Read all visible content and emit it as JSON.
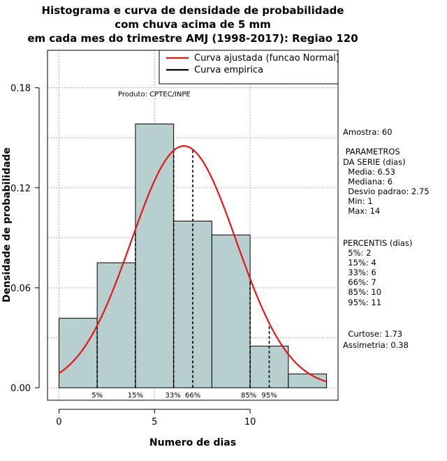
{
  "chart_data": {
    "type": "histogram",
    "title": [
      "Histograma e curva de densidade de probabilidade",
      "com chuva acima de 5 mm",
      "em cada mes do trimestre AMJ (1998-2017): Regiao 120"
    ],
    "xlabel": "Numero de dias",
    "ylabel": "Densidade de probabilidade",
    "xlim": [
      -0.6,
      14.6
    ],
    "ylim": [
      -0.0075,
      0.2025
    ],
    "x_ticks": [
      0,
      5,
      10
    ],
    "y_ticks": [
      0.0,
      0.06,
      0.12,
      0.18
    ],
    "y_tick_labels": [
      "0.00",
      "0.06",
      "0.12",
      "0.18"
    ],
    "bins": [
      {
        "x0": 0,
        "x1": 2,
        "density": 0.0417
      },
      {
        "x0": 2,
        "x1": 4,
        "density": 0.075
      },
      {
        "x0": 4,
        "x1": 6,
        "density": 0.1583
      },
      {
        "x0": 6,
        "x1": 8,
        "density": 0.1
      },
      {
        "x0": 8,
        "x1": 10,
        "density": 0.0917
      },
      {
        "x0": 10,
        "x1": 12,
        "density": 0.025
      },
      {
        "x0": 12,
        "x1": 14,
        "density": 0.0083
      }
    ],
    "normal_fit": {
      "mean": 6.53,
      "sd": 2.75,
      "x_range": [
        0,
        14
      ],
      "color": "#e8141c"
    },
    "percentile_markers": [
      {
        "label": "5%",
        "x": 2
      },
      {
        "label": "15%",
        "x": 4
      },
      {
        "label": "33%",
        "x": 6
      },
      {
        "label": "66%",
        "x": 7
      },
      {
        "label": "85%",
        "x": 10
      },
      {
        "label": "95%",
        "x": 11
      }
    ],
    "legend": [
      {
        "label": "Curva ajustada (funcao Normal)",
        "color": "#e8141c"
      },
      {
        "label": "Curva empirica",
        "color": "#000000"
      }
    ],
    "product_label": "Produto: CPTEC/INPE",
    "stats_text": [
      "Amostra: 60",
      " PARAMETROS",
      "DA SERIE (dias)",
      "  Media: 6.53",
      "  Mediana: 6",
      "  Desvio padrao: 2.75",
      "  Min: 1",
      "  Max: 14",
      "PERCENTIS (dias)",
      "  5%: 2",
      "  15%: 4",
      "  33%: 6",
      "  66%: 7",
      "  85%: 10",
      "  95%: 11",
      "  Curtose: 1.73",
      "Assimetria: 0.38"
    ],
    "grid": true,
    "colors": {
      "bar_fill": "#b7cfcf",
      "grid": "#b0b0b0",
      "curve": "#e8141c"
    }
  }
}
